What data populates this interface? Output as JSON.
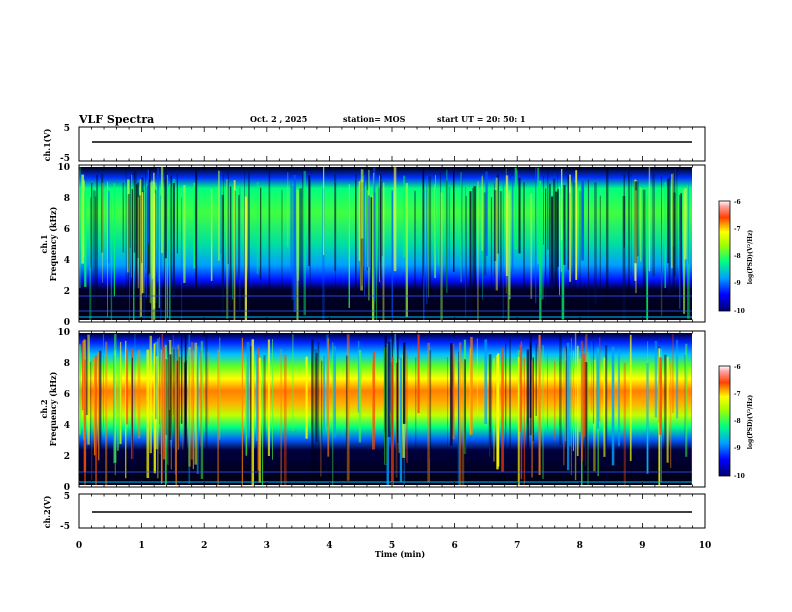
{
  "header": {
    "title": "VLF Spectra",
    "date": "Oct. 2 , 2025",
    "station": "station= MOS",
    "start": "start  UT  =   20: 50: 1"
  },
  "chart_data": {
    "type": "heatmap",
    "xlabel": "Time  (min)",
    "xlim": [
      0,
      10
    ],
    "x_ticks": [
      "0",
      "1",
      "2",
      "3",
      "4",
      "5",
      "6",
      "7",
      "8",
      "9",
      "10"
    ],
    "panels": [
      {
        "id": "ch1-wave",
        "ylabel": "ch.1(V)",
        "ylim": [
          -5,
          5
        ],
        "y_ticks": [
          "5",
          "-5"
        ],
        "trace_level": 0
      },
      {
        "id": "ch1-spec",
        "ylabel_line1": "ch.1",
        "ylabel_line2": "Frequency (kHz)",
        "ylim": [
          0,
          10
        ],
        "y_ticks": [
          "10",
          "8",
          "6",
          "4",
          "2",
          "0"
        ],
        "colorbar_label": "log(PSD)(V²/Hz)",
        "colorbar_ticks": [
          "-6",
          "-7",
          "-8",
          "-9",
          "-10"
        ],
        "colorbar_range": [
          -10,
          -6
        ],
        "emission_band_khz": [
          3,
          9
        ],
        "peak_log_psd": -7
      },
      {
        "id": "ch2-spec",
        "ylabel_line1": "ch.2",
        "ylabel_line2": "Frequency (kHz)",
        "ylim": [
          0,
          10
        ],
        "y_ticks": [
          "10",
          "8",
          "6",
          "4",
          "2",
          "0"
        ],
        "colorbar_label": "log(PSD)(V²/Hz)",
        "colorbar_ticks": [
          "-6",
          "-7",
          "-8",
          "-9",
          "-10"
        ],
        "colorbar_range": [
          -10,
          -6
        ],
        "emission_band_khz": [
          3,
          9
        ],
        "peak_log_psd": -6.3
      },
      {
        "id": "ch2-wave",
        "ylabel": "ch.2(V)",
        "ylim": [
          -5,
          5
        ],
        "y_ticks": [
          "5",
          "-5"
        ],
        "trace_level": 0
      }
    ]
  }
}
